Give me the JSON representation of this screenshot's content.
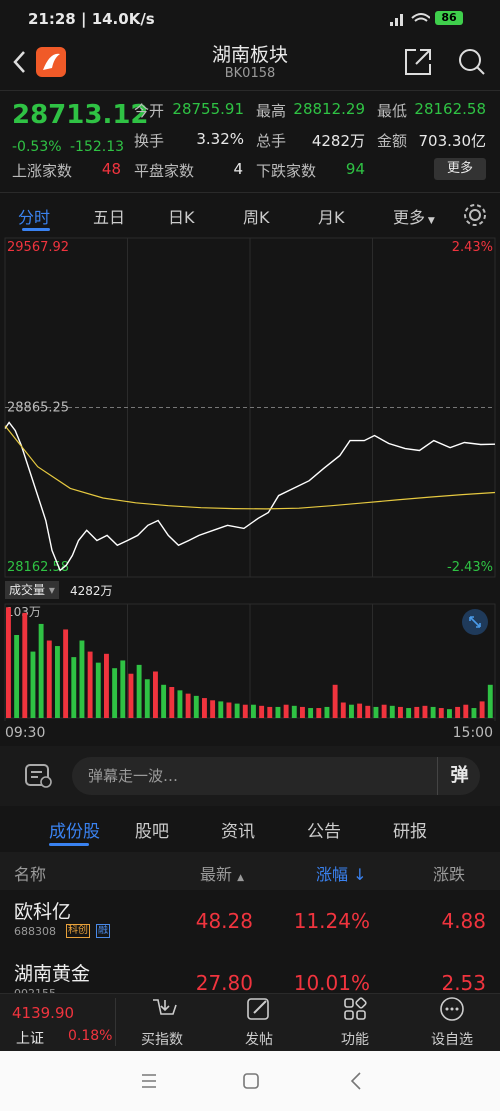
{
  "status_bar": {
    "time": "21:28",
    "speed": "14.0K/s",
    "battery": "86"
  },
  "header": {
    "title": "湖南板块",
    "code": "BK0158"
  },
  "quote": {
    "price": "28713.12",
    "change_pct": "-0.53%",
    "change": "-152.13",
    "fields": [
      {
        "label": "今开",
        "value": "28755.91"
      },
      {
        "label": "最高",
        "value": "28812.29"
      },
      {
        "label": "最低",
        "value": "28162.58"
      },
      {
        "label": "换手",
        "value": "3.32%"
      },
      {
        "label": "总手",
        "value": "4282万"
      },
      {
        "label": "金额",
        "value": "703.30亿"
      },
      {
        "label": "上涨家数",
        "value": "48"
      },
      {
        "label": "平盘家数",
        "value": "4"
      },
      {
        "label": "下跌家数",
        "value": "94"
      }
    ],
    "more": "更多"
  },
  "chart_tabs": [
    "分时",
    "五日",
    "日K",
    "周K",
    "月K",
    "更多"
  ],
  "chart_data": [
    {
      "type": "line",
      "ylim": [
        28162.58,
        29567.92
      ],
      "yticks": [
        29567.92,
        28865.25,
        28162.58
      ],
      "y2lim": [
        -2.43,
        2.43
      ],
      "y2ticks": [
        {
          "value": 2.43,
          "label": "2.43%"
        },
        {
          "value": -2.43,
          "label": "-2.43%"
        }
      ],
      "xlim": [
        0,
        240
      ],
      "series": [
        {
          "color": "#ffffff",
          "x": [
            0,
            2,
            5,
            8,
            12,
            16,
            20,
            23,
            27,
            30,
            33,
            36,
            40,
            45,
            50,
            55,
            60,
            65,
            70,
            75,
            80,
            85,
            90,
            95,
            102,
            109,
            117,
            124,
            129,
            134,
            141,
            149,
            156,
            164,
            169,
            176,
            181,
            188,
            196,
            203,
            210,
            218,
            225,
            233,
            240
          ],
          "values": [
            28778,
            28803,
            28770,
            28708,
            28604,
            28500,
            28397,
            28273,
            28190,
            28211,
            28252,
            28314,
            28356,
            28314,
            28335,
            28294,
            28314,
            28335,
            28377,
            28397,
            28335,
            28294,
            28314,
            28335,
            28356,
            28377,
            28364,
            28406,
            28430,
            28500,
            28529,
            28562,
            28612,
            28666,
            28728,
            28728,
            28749,
            28716,
            28695,
            28687,
            28728,
            28699,
            28720,
            28712,
            28713
          ]
        },
        {
          "color": "#e6c940",
          "x": [
            0,
            16,
            32,
            48,
            64,
            80,
            96,
            112,
            128,
            144,
            160,
            176,
            192,
            208,
            224,
            240
          ],
          "values": [
            28790,
            28620,
            28530,
            28490,
            28470,
            28458,
            28450,
            28446,
            28445,
            28448,
            28458,
            28470,
            28482,
            28494,
            28504,
            28513
          ]
        }
      ]
    },
    {
      "type": "bar",
      "ylim": [
        0,
        103
      ],
      "yticks": [
        {
          "value": 103,
          "label": "103万"
        }
      ],
      "xlim": [
        0,
        240
      ],
      "xticks": [
        {
          "value": 0,
          "label": "09:30"
        },
        {
          "value": 240,
          "label": "15:00"
        }
      ],
      "x": [
        0,
        4,
        8,
        12,
        16,
        20,
        24,
        28,
        32,
        36,
        40,
        44,
        48,
        52,
        56,
        60,
        64,
        68,
        72,
        76,
        80,
        84,
        88,
        92,
        96,
        100,
        104,
        108,
        112,
        116,
        120,
        124,
        128,
        132,
        136,
        140,
        144,
        148,
        152,
        156,
        160,
        164,
        168,
        172,
        176,
        180,
        184,
        188,
        192,
        196,
        200,
        204,
        208,
        212,
        216,
        220,
        224,
        228,
        232,
        236
      ],
      "values": [
        100,
        75,
        95,
        60,
        85,
        70,
        65,
        80,
        55,
        70,
        60,
        50,
        58,
        45,
        52,
        40,
        48,
        35,
        42,
        30,
        28,
        25,
        22,
        20,
        18,
        16,
        15,
        14,
        13,
        12,
        12,
        11,
        10,
        10,
        12,
        11,
        10,
        9,
        9,
        10,
        30,
        14,
        12,
        13,
        11,
        10,
        12,
        11,
        10,
        9,
        10,
        11,
        10,
        9,
        8,
        10,
        12,
        9,
        15,
        30
      ],
      "colors": [
        "#f0343e",
        "#2fc244",
        "#f0343e",
        "#2fc244",
        "#2fc244",
        "#f0343e",
        "#2fc244",
        "#f0343e",
        "#2fc244",
        "#2fc244",
        "#f0343e",
        "#2fc244",
        "#f0343e",
        "#2fc244",
        "#2fc244",
        "#f0343e",
        "#2fc244",
        "#2fc244",
        "#f0343e",
        "#2fc244",
        "#f0343e",
        "#2fc244",
        "#f0343e",
        "#2fc244",
        "#f0343e",
        "#f0343e",
        "#2fc244",
        "#f0343e",
        "#2fc244",
        "#f0343e",
        "#2fc244",
        "#f0343e",
        "#f0343e",
        "#2fc244",
        "#f0343e",
        "#2fc244",
        "#f0343e",
        "#2fc244",
        "#f0343e",
        "#2fc244",
        "#f0343e",
        "#f0343e",
        "#2fc244",
        "#f0343e",
        "#f0343e",
        "#2fc244",
        "#f0343e",
        "#2fc244",
        "#f0343e",
        "#2fc244",
        "#f0343e",
        "#f0343e",
        "#2fc244",
        "#f0343e",
        "#2fc244",
        "#f0343e",
        "#f0343e",
        "#2fc244",
        "#f0343e",
        "#2fc244"
      ]
    }
  ],
  "volume_label": {
    "name": "成交量",
    "value": "4282万"
  },
  "danmaku": {
    "placeholder": "弹幕走一波…",
    "button": "弹"
  },
  "list_tabs": [
    "成份股",
    "股吧",
    "资讯",
    "公告",
    "研报"
  ],
  "table": {
    "headers": [
      "名称",
      "最新",
      "涨幅",
      "涨跌"
    ],
    "rows": [
      {
        "name": "欧科亿",
        "code": "688308",
        "tags": [
          "科创",
          "融"
        ],
        "latest": "48.28",
        "pct": "11.24%",
        "chg": "4.88"
      },
      {
        "name": "湖南黄金",
        "code": "002155",
        "tags": [],
        "latest": "27.80",
        "pct": "10.01%",
        "chg": "2.53"
      }
    ]
  },
  "bottom_bar": {
    "index_value": "4139.90",
    "index_name": "上证",
    "index_pct": "0.18%",
    "items": [
      "买指数",
      "发帖",
      "功能",
      "设自选"
    ]
  }
}
